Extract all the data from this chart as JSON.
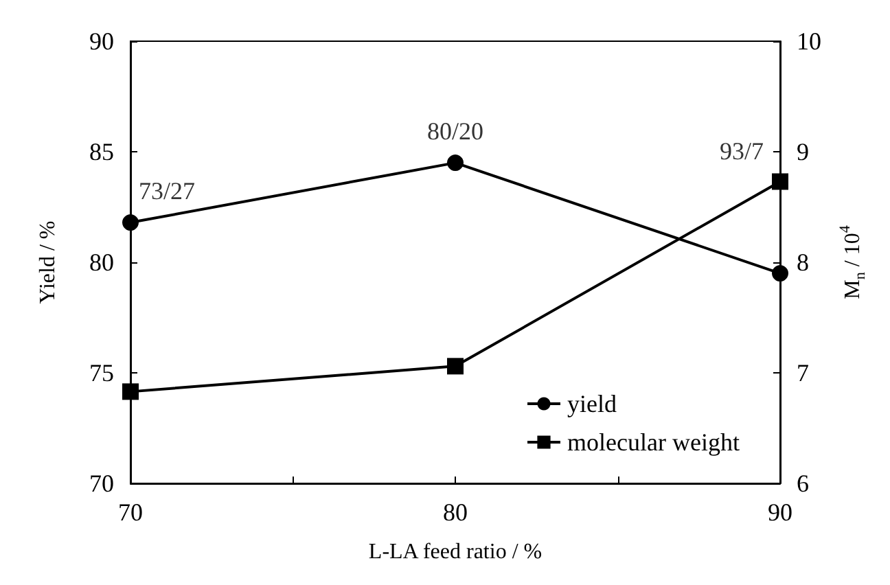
{
  "chart_data": {
    "type": "line",
    "xlabel": "L-LA feed ratio / %",
    "ylabel": "Yield / %",
    "y2label": "M$_{n}$ / 10$^{4}$",
    "x": [
      70,
      80,
      90
    ],
    "series": [
      {
        "name": "yield",
        "color": "#000000",
        "values": [
          81.8,
          84.5,
          79.5
        ],
        "marker": "circle"
      },
      {
        "name": "molecular weight",
        "color": "#000000",
        "values": [
          6.83,
          7.06,
          8.73
        ],
        "marker": "square",
        "axis": "y2"
      }
    ],
    "xlim": [
      70,
      90
    ],
    "xticks": [
      70,
      {
        "value": 75,
        "label": null
      },
      80,
      {
        "value": 85,
        "label": null
      },
      90
    ],
    "ylim": [
      70,
      90
    ],
    "yticks": [
      70,
      75,
      80,
      85,
      90
    ],
    "y2lim": [
      6,
      10
    ],
    "y2ticks": [
      6,
      7,
      8,
      9,
      10
    ],
    "annotations": [
      {
        "text": "73/27",
        "x": 70,
        "y": 81.8
      },
      {
        "text": "80/20",
        "x": 80,
        "y": 84.5
      },
      {
        "text": "93/7",
        "x": 90,
        "y": 83.6
      }
    ],
    "legend": "bottom right",
    "grid": false,
    "line_style": "solid"
  }
}
